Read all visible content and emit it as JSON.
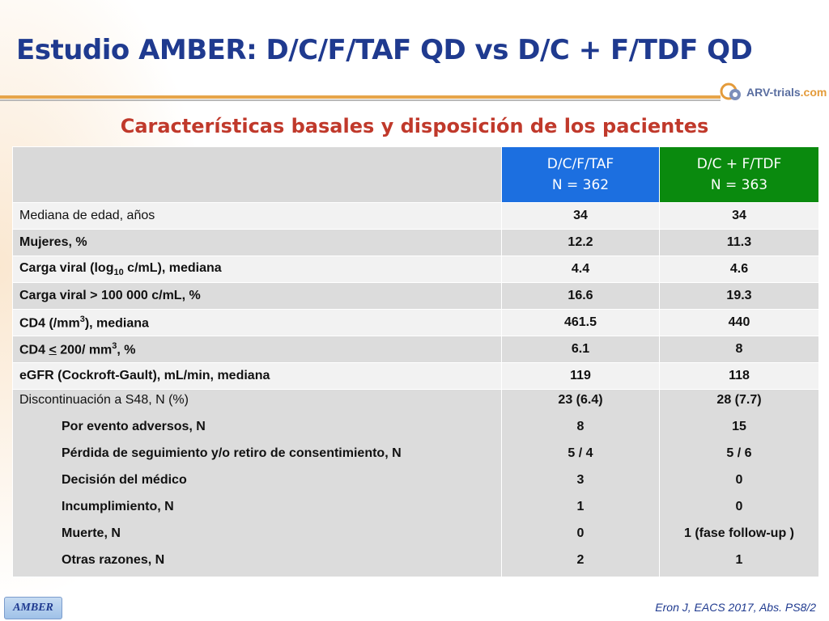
{
  "title": "Estudio AMBER: D/C/F/TAF QD vs D/C + F/TDF QD",
  "logo": {
    "main": "ARV-trials",
    "suffix": ".com"
  },
  "subtitle": "Características basales y disposición de los pacientes",
  "colors": {
    "title": "#1f3a8f",
    "subtitle": "#c0392b",
    "arm_a": "#1c6fe0",
    "arm_b": "#0a8a0e"
  },
  "table": {
    "headers": [
      {
        "line1": "D/C/F/TAF",
        "line2": "N = 362"
      },
      {
        "line1": "D/C + F/TDF",
        "line2": "N = 363"
      }
    ],
    "rows": [
      {
        "label": "Mediana de edad, años",
        "a": "34",
        "b": "34"
      },
      {
        "label": "Mujeres, %",
        "a": "12.2",
        "b": "11.3"
      },
      {
        "label_pre": "Carga viral (log",
        "label_sub": "10",
        "label_post": " c/mL), mediana",
        "a": "4.4",
        "b": "4.6"
      },
      {
        "label": "Carga viral > 100 000 c/mL, %",
        "a": "16.6",
        "b": "19.3"
      },
      {
        "label_pre": "CD4  (/mm",
        "label_sup": "3",
        "label_post": "), mediana",
        "a": "461.5",
        "b": "440"
      },
      {
        "label_pre": "CD4 ",
        "label_u": "<",
        "label_mid": " 200/ mm",
        "label_sup": "3",
        "label_post": ", %",
        "a": "6.1",
        "b": "8"
      },
      {
        "label": "eGFR (Cockroft-Gault), mL/min, mediana",
        "a": "119",
        "b": "118"
      }
    ],
    "discontinuation": [
      {
        "label": "Discontinuación a S48, N (%)",
        "a": "23 (6.4)",
        "b": "28 (7.7)"
      },
      {
        "label": "Por evento adversos, N",
        "a": "8",
        "b": "15"
      },
      {
        "label": "Pérdida de seguimiento y/o retiro de consentimiento, N",
        "a": "5 / 4",
        "b": "5 / 6"
      },
      {
        "label": "Decisión del médico",
        "a": "3",
        "b": "0"
      },
      {
        "label": "Incumplimiento, N",
        "a": "1",
        "b": "0"
      },
      {
        "label": "Muerte, N",
        "a": "0",
        "b": "1 (fase follow-up )"
      },
      {
        "label": "Otras razones, N",
        "a": "2",
        "b": "1"
      }
    ]
  },
  "footer": {
    "tag": "AMBER",
    "source": "Eron J, EACS 2017, Abs. PS8/2"
  }
}
